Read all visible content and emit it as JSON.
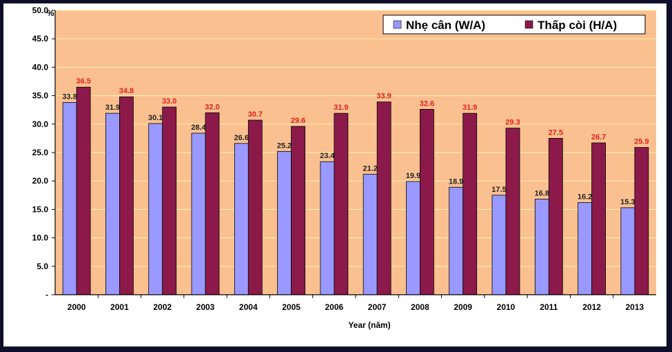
{
  "chart_data": {
    "type": "bar",
    "categories": [
      "2000",
      "2001",
      "2002",
      "2003",
      "2004",
      "2005",
      "2006",
      "2007",
      "2008",
      "2009",
      "2010",
      "2011",
      "2012",
      "2013"
    ],
    "series": [
      {
        "name": "Nhẹ cân (W/A)",
        "color": "#9999ff",
        "values": [
          33.8,
          31.9,
          30.1,
          28.4,
          26.6,
          25.2,
          23.4,
          21.2,
          19.9,
          18.9,
          17.5,
          16.8,
          16.2,
          15.3
        ],
        "labels": [
          "33.8",
          "31.9",
          "30.1",
          "28.4",
          "26.6",
          "25.2",
          "23.4",
          "21.2",
          "19.9",
          "18.9",
          "17.5",
          "16.8",
          "16.2",
          "15.3"
        ]
      },
      {
        "name": "Thấp còi (H/A)",
        "color": "#8b1a4a",
        "values": [
          36.5,
          34.8,
          33.0,
          32.0,
          30.7,
          29.6,
          31.9,
          33.9,
          32.6,
          31.9,
          29.3,
          27.5,
          26.7,
          25.9
        ],
        "labels": [
          "36.5",
          "34.8",
          "33.0",
          "32.0",
          "30.7",
          "29.6",
          "31.9",
          "33.9",
          "32.6",
          "31.9",
          "29.3",
          "27.5",
          "26.7",
          "25.9"
        ]
      }
    ],
    "xlabel": "Year (năm)",
    "ylabel_unit": "%",
    "ylim": [
      0,
      50
    ],
    "y_ticks": [
      "-",
      "5.0",
      "10.0",
      "15.0",
      "20.0",
      "25.0",
      "30.0",
      "35.0",
      "40.0",
      "45.0",
      "50.0"
    ],
    "grid": true,
    "plot_background": "#fac090",
    "label_color_series2": "#e0201c",
    "legend_position": "top-right"
  }
}
